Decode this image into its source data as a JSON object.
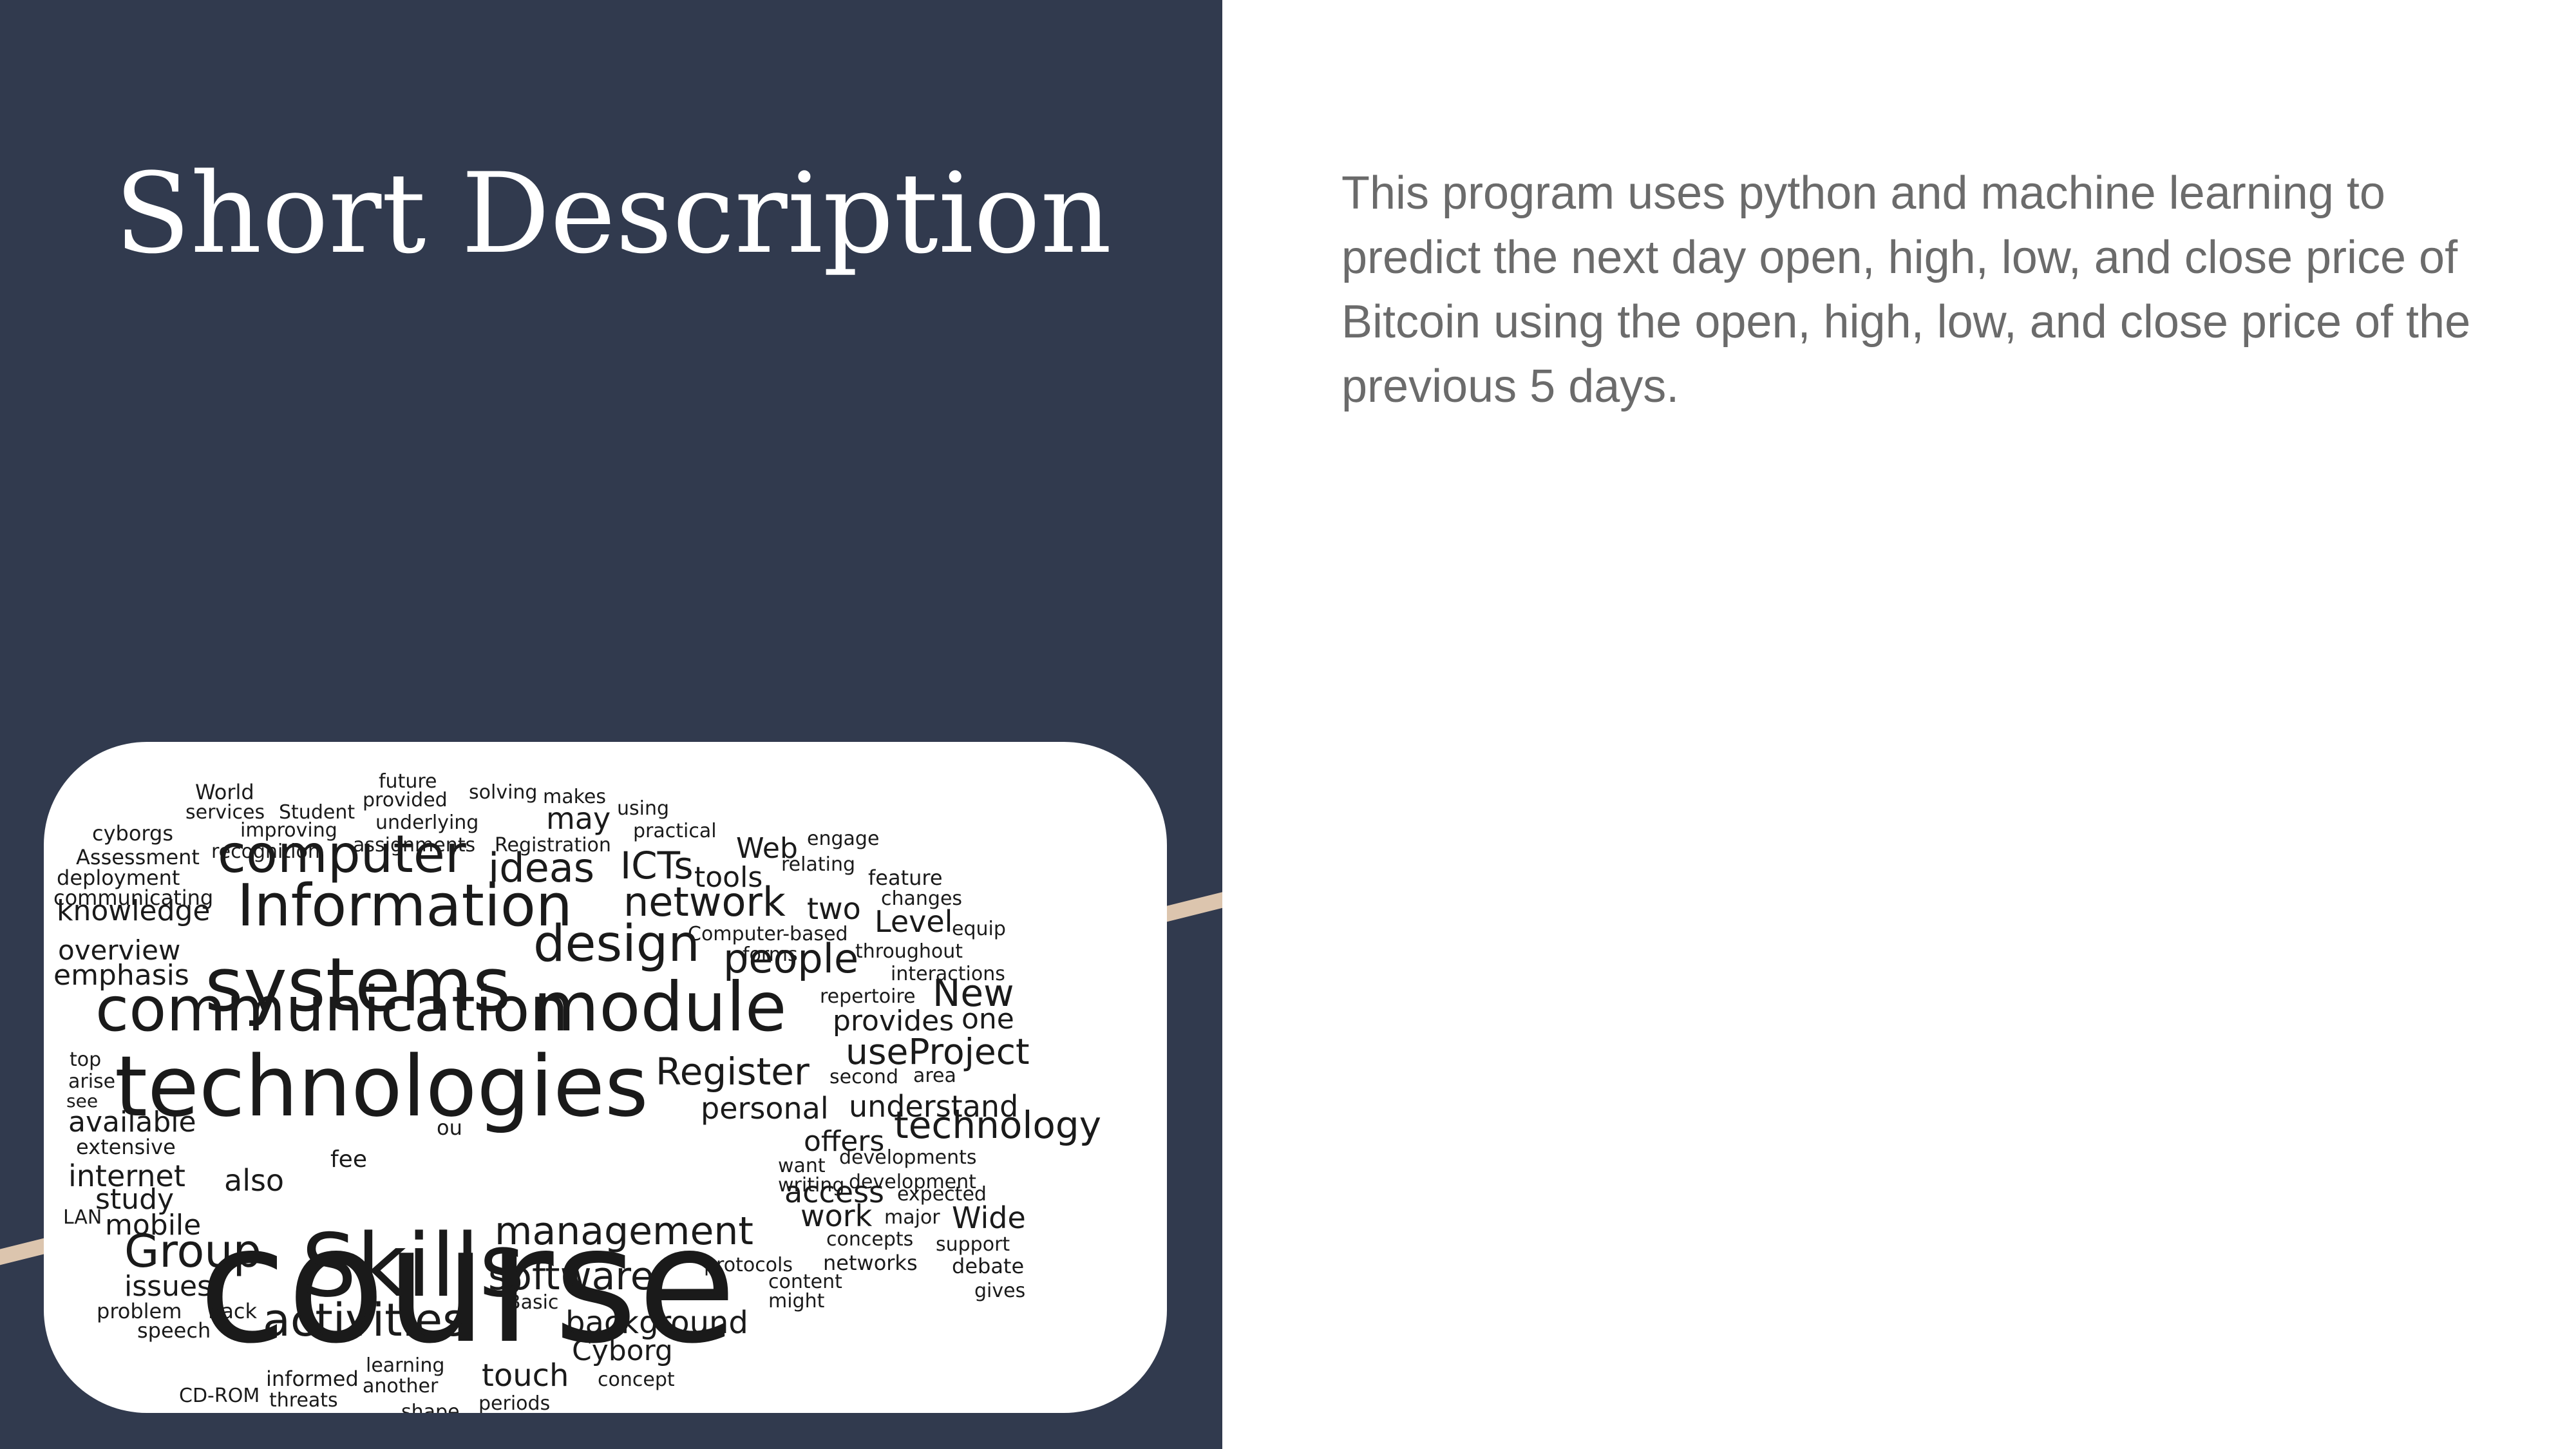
{
  "slide": {
    "title": "Short Description",
    "description": "This program uses python and machine learning to predict the next day open, high, low, and close price of Bitcoin using the open, high, low, and close price of the previous 5 days."
  },
  "theme": {
    "panel_color": "#313a4e",
    "accent_color": "#dcc5ae",
    "text_color": "#6b6b6b"
  },
  "word_cloud": {
    "words": [
      "course",
      "technologies",
      "Skills",
      "systems",
      "communication",
      "module",
      "Information",
      "computer",
      "activities",
      "Group",
      "design",
      "network",
      "management",
      "software",
      "people",
      "Register",
      "technology",
      "useProject",
      "ideas",
      "ICTs",
      "understand",
      "personal",
      "background",
      "New",
      "knowledge",
      "emphasis",
      "overview",
      "internet",
      "mobile",
      "study",
      "also",
      "available",
      "extensive",
      "issues",
      "problem",
      "speech",
      "cyborgs",
      "Assessment",
      "deployment",
      "communicating",
      "World",
      "services",
      "Student",
      "improving",
      "recognition",
      "future",
      "provided",
      "underlying",
      "assignments",
      "solving",
      "makes",
      "may",
      "using",
      "Registration",
      "practical",
      "Web",
      "engage",
      "relating",
      "feature",
      "tools",
      "two",
      "changes",
      "Level",
      "equip",
      "Computer-based",
      "forms",
      "throughout",
      "interactions",
      "repertoire",
      "provides",
      "one",
      "second",
      "area",
      "offers",
      "access",
      "expected",
      "want",
      "developments",
      "writing",
      "development",
      "work",
      "major",
      "Wide",
      "concepts",
      "support",
      "networks",
      "debate",
      "content",
      "might",
      "gives",
      "protocols",
      "Basic",
      "Cyborg",
      "concept",
      "touch",
      "periods",
      "learning",
      "another",
      "informed",
      "threats",
      "shape",
      "CD-ROM",
      "back",
      "LAN",
      "top",
      "arise",
      "see",
      "ou",
      "fee"
    ]
  }
}
